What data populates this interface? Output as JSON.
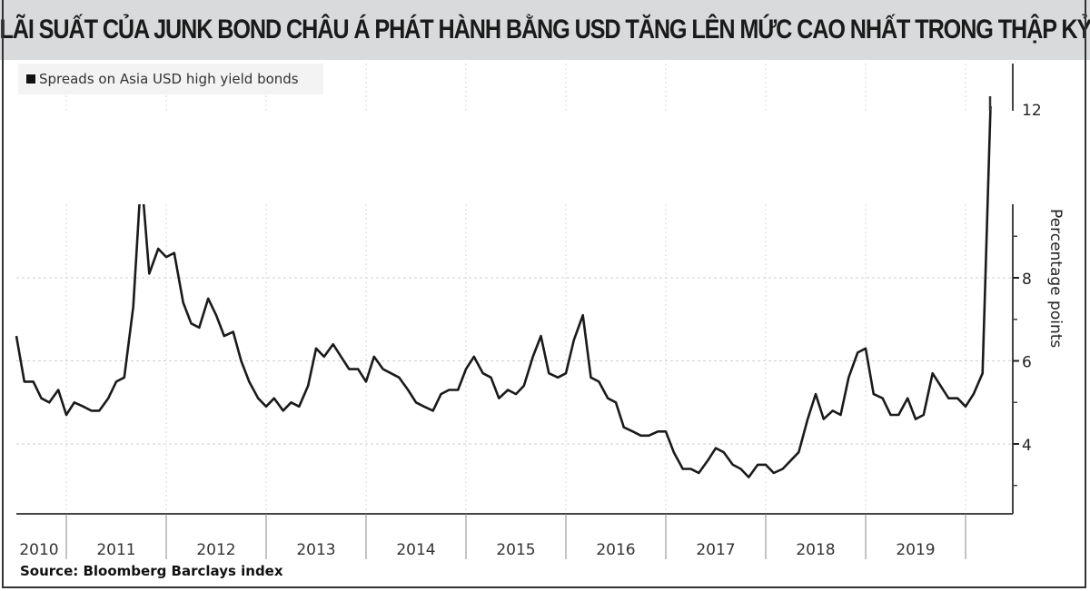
{
  "title": "LÃI SUẤT CỦA JUNK BOND CHÂU Á PHÁT HÀNH BẰNG USD TĂNG LÊN MỨC CAO NHẤT TRONG THẬP KỶ",
  "legend": {
    "label": "Spreads on Asia USD high yield bonds",
    "color": "#111111"
  },
  "source": "Source: Bloomberg Barclays index",
  "colors": {
    "title_bg": "#d9dadc",
    "line": "#1a1a1a",
    "grid": "#cccccc",
    "legend_bg": "#f3f3f3"
  },
  "chart_data": {
    "type": "line",
    "title": "Spreads on Asia USD high yield bonds",
    "xlabel": "",
    "ylabel": "Percentage points",
    "y_axis_position": "right",
    "yticks": [
      4,
      6,
      8,
      12
    ],
    "ytick_labels": [
      "4",
      "6",
      "8",
      "12"
    ],
    "ylim": [
      2.3,
      13
    ],
    "grid": true,
    "legend_position": "top-left",
    "x_categories": [
      "2010",
      "2011",
      "2012",
      "2013",
      "2014",
      "2015",
      "2016",
      "2017",
      "2018",
      "2019"
    ],
    "x_start": 2010.5,
    "x_end": 2020.25,
    "series": [
      {
        "name": "Spreads on Asia USD high yield bonds",
        "x": [
          2010.5,
          2010.58,
          2010.67,
          2010.75,
          2010.83,
          2010.92,
          2011.0,
          2011.08,
          2011.17,
          2011.25,
          2011.33,
          2011.42,
          2011.5,
          2011.58,
          2011.67,
          2011.75,
          2011.83,
          2011.92,
          2012.0,
          2012.08,
          2012.17,
          2012.25,
          2012.33,
          2012.42,
          2012.5,
          2012.58,
          2012.67,
          2012.75,
          2012.83,
          2012.92,
          2013.0,
          2013.08,
          2013.17,
          2013.25,
          2013.33,
          2013.42,
          2013.5,
          2013.58,
          2013.67,
          2013.75,
          2013.83,
          2013.92,
          2014.0,
          2014.08,
          2014.17,
          2014.25,
          2014.33,
          2014.42,
          2014.5,
          2014.58,
          2014.67,
          2014.75,
          2014.83,
          2014.92,
          2015.0,
          2015.08,
          2015.17,
          2015.25,
          2015.33,
          2015.42,
          2015.5,
          2015.58,
          2015.67,
          2015.75,
          2015.83,
          2015.92,
          2016.0,
          2016.08,
          2016.17,
          2016.25,
          2016.33,
          2016.42,
          2016.5,
          2016.58,
          2016.67,
          2016.75,
          2016.83,
          2016.92,
          2017.0,
          2017.08,
          2017.17,
          2017.25,
          2017.33,
          2017.42,
          2017.5,
          2017.58,
          2017.67,
          2017.75,
          2017.83,
          2017.92,
          2018.0,
          2018.08,
          2018.17,
          2018.25,
          2018.33,
          2018.42,
          2018.5,
          2018.58,
          2018.67,
          2018.75,
          2018.83,
          2018.92,
          2019.0,
          2019.08,
          2019.17,
          2019.25,
          2019.33,
          2019.42,
          2019.5,
          2019.58,
          2019.67,
          2019.75,
          2019.83,
          2019.92,
          2020.0,
          2020.08,
          2020.17,
          2020.25
        ],
        "values": [
          6.6,
          5.5,
          5.5,
          5.1,
          5.0,
          5.3,
          4.7,
          5.0,
          4.9,
          4.8,
          4.8,
          5.1,
          5.5,
          5.6,
          7.3,
          10.5,
          8.1,
          8.7,
          8.5,
          8.6,
          7.4,
          6.9,
          6.8,
          7.5,
          7.1,
          6.6,
          6.7,
          6.0,
          5.5,
          5.1,
          4.9,
          5.1,
          4.8,
          5.0,
          4.9,
          5.4,
          6.3,
          6.1,
          6.4,
          6.1,
          5.8,
          5.8,
          5.5,
          6.1,
          5.8,
          5.7,
          5.6,
          5.3,
          5.0,
          4.9,
          4.8,
          5.2,
          5.3,
          5.3,
          5.8,
          6.1,
          5.7,
          5.6,
          5.1,
          5.3,
          5.2,
          5.4,
          6.1,
          6.6,
          5.7,
          5.6,
          5.7,
          6.5,
          7.1,
          5.6,
          5.5,
          5.1,
          5.0,
          4.4,
          4.3,
          4.2,
          4.2,
          4.3,
          4.3,
          3.8,
          3.4,
          3.4,
          3.3,
          3.6,
          3.9,
          3.8,
          3.5,
          3.4,
          3.2,
          3.5,
          3.5,
          3.3,
          3.4,
          3.6,
          3.8,
          4.6,
          5.2,
          4.6,
          4.8,
          4.7,
          5.6,
          6.2,
          6.3,
          5.2,
          5.1,
          4.7,
          4.7,
          5.1,
          4.6,
          4.7,
          5.7,
          5.4,
          5.1,
          5.1,
          4.9,
          5.2,
          5.7,
          13.0
        ]
      }
    ]
  }
}
